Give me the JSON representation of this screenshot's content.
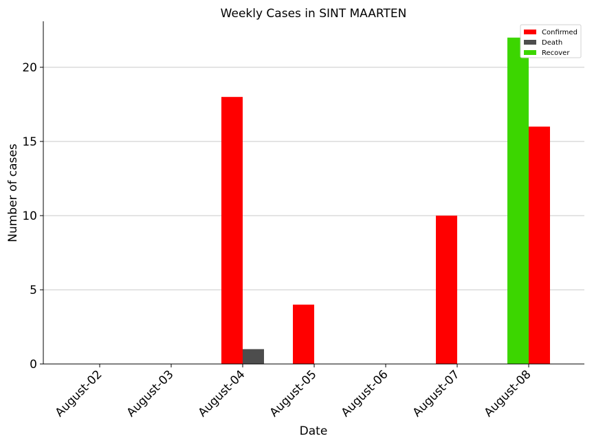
{
  "chart_data": {
    "type": "bar",
    "title": "Weekly Cases in SINT MAARTEN",
    "xlabel": "Date",
    "ylabel": "Number of cases",
    "categories": [
      "August-02",
      "August-03",
      "August-04",
      "August-05",
      "August-06",
      "August-07",
      "August-08"
    ],
    "series": [
      {
        "name": "Confirmed",
        "color": "#ff0000",
        "values": [
          0,
          0,
          18,
          4,
          0,
          10,
          16
        ]
      },
      {
        "name": "Death",
        "color": "#4d4d4d",
        "values": [
          0,
          0,
          1,
          0,
          0,
          0,
          0
        ]
      },
      {
        "name": "Recover",
        "color": "#3cd600",
        "values": [
          0,
          0,
          0,
          0,
          0,
          0,
          22
        ]
      }
    ],
    "ylim": [
      0,
      23.1
    ],
    "yticks": [
      0,
      5,
      10,
      15,
      20
    ],
    "grid": "horizontal",
    "legend_position": "top-right"
  }
}
